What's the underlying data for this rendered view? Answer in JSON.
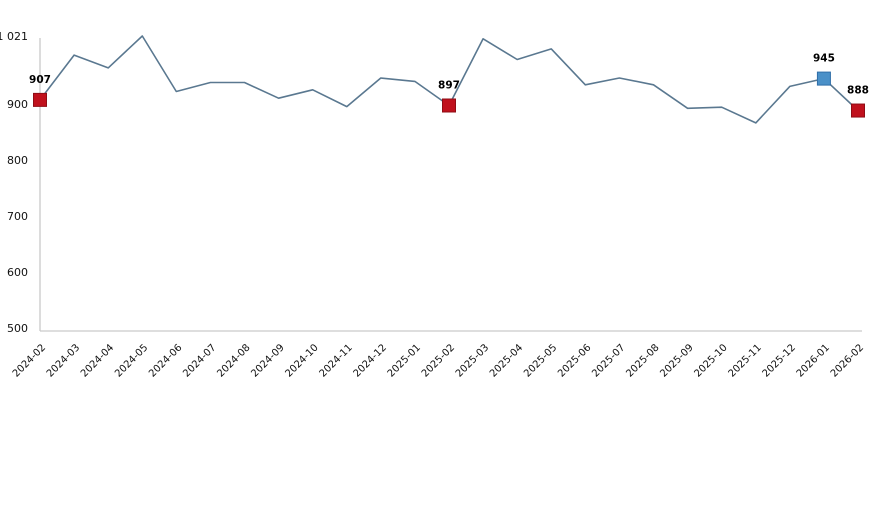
{
  "chart_data": {
    "type": "line",
    "title": "",
    "xlabel": "",
    "ylabel": "",
    "categories": [
      "2024-02",
      "2024-03",
      "2024-04",
      "2024-05",
      "2024-06",
      "2024-07",
      "2024-08",
      "2024-09",
      "2024-10",
      "2024-11",
      "2024-12",
      "2025-01",
      "2025-02",
      "2025-03",
      "2025-04",
      "2025-05",
      "2025-06",
      "2025-07",
      "2025-08",
      "2025-09",
      "2025-10",
      "2025-11",
      "2025-12",
      "2026-01",
      "2026-02"
    ],
    "values": [
      907,
      987,
      964,
      1021,
      922,
      938,
      938,
      910,
      925,
      895,
      946,
      940,
      897,
      1016,
      979,
      998,
      934,
      946,
      934,
      892,
      894,
      866,
      931,
      945,
      888
    ],
    "ylim": [
      500,
      1021
    ],
    "grid": false,
    "legend": "none",
    "yticks": [
      {
        "label": "500",
        "value": 500
      },
      {
        "label": "600",
        "value": 600
      },
      {
        "label": "700",
        "value": 700
      },
      {
        "label": "800",
        "value": 800
      },
      {
        "label": "900",
        "value": 900
      },
      {
        "label": "1 021",
        "value": 1021
      }
    ],
    "highlighted_points": [
      {
        "index": 0,
        "category": "2024-02",
        "label": "907",
        "marker_color": "red"
      },
      {
        "index": 12,
        "category": "2025-02",
        "label": "897",
        "marker_color": "red"
      },
      {
        "index": 23,
        "category": "2026-01",
        "label": "945",
        "marker_color": "blue"
      },
      {
        "index": 24,
        "category": "2026-02",
        "label": "888",
        "marker_color": "red"
      }
    ],
    "colors": {
      "line": "#5a7890",
      "marker_red_fill": "#c0111d",
      "marker_red_border": "#8f0d15",
      "marker_blue_fill": "#4a90c8",
      "marker_blue_border": "#2f6ea8",
      "axis_line": "#c9c9c9",
      "label_text": "#000000"
    }
  }
}
